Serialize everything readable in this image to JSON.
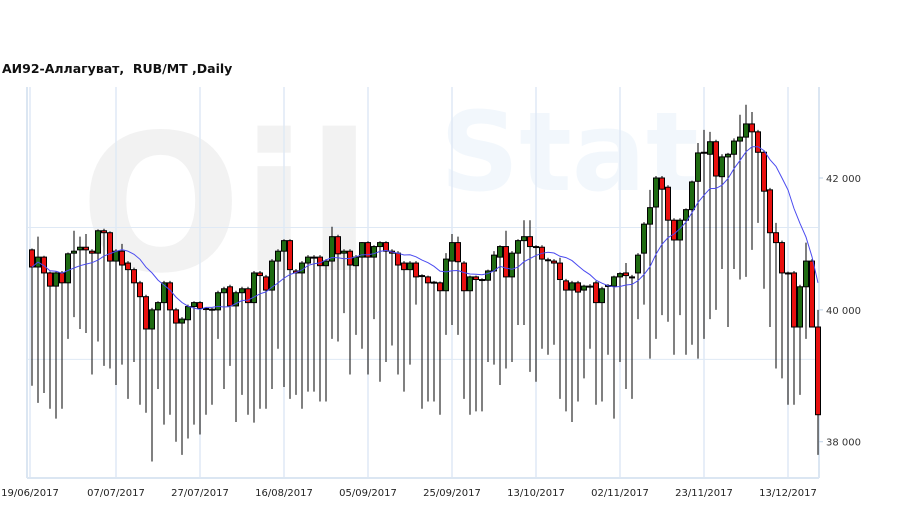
{
  "title": "АИ92-Аллагуват,  RUB/MT ,Daily",
  "watermark": "OilStat",
  "chart_data": {
    "type": "candlestick",
    "title": "АИ92-Аллагуват,  RUB/MT ,Daily",
    "ylim": [
      37450,
      43380
    ],
    "yticks": [
      38000,
      40000,
      42000
    ],
    "ytick_labels": [
      "38 000",
      "40 000",
      "42 000"
    ],
    "xtick_labels": [
      "19/06/2017",
      "07/07/2017",
      "27/07/2017",
      "16/08/2017",
      "05/09/2017",
      "25/09/2017",
      "13/10/2017",
      "02/11/2017",
      "23/11/2017",
      "13/12/2017"
    ],
    "xtick_every_n_candles": 14,
    "grid": true,
    "colors": {
      "up": "#1f6b12",
      "down": "#e8100f",
      "moving_average": "#4b4bf0",
      "grid": "#dfe9f5"
    },
    "ohlc_fields": [
      "open",
      "high",
      "low",
      "close"
    ],
    "candles": [
      [
        40910,
        40930,
        38850,
        40650
      ],
      [
        40650,
        41110,
        38590,
        40800
      ],
      [
        40800,
        40820,
        38740,
        40560
      ],
      [
        40560,
        40580,
        38500,
        40360
      ],
      [
        40360,
        40580,
        38350,
        40560
      ],
      [
        40560,
        40590,
        38500,
        40410
      ],
      [
        40410,
        40870,
        39560,
        40850
      ],
      [
        40860,
        41200,
        39890,
        40890
      ],
      [
        40910,
        41110,
        39710,
        40950
      ],
      [
        40950,
        41150,
        39650,
        40910
      ],
      [
        40890,
        40920,
        39020,
        40860
      ],
      [
        40860,
        41220,
        39520,
        41200
      ],
      [
        41200,
        41230,
        39150,
        41170
      ],
      [
        41170,
        41190,
        39110,
        40740
      ],
      [
        40740,
        40920,
        38860,
        40890
      ],
      [
        40890,
        41000,
        39170,
        40680
      ],
      [
        40710,
        40740,
        38650,
        40610
      ],
      [
        40610,
        40640,
        39210,
        40410
      ],
      [
        40410,
        40440,
        38560,
        40200
      ],
      [
        40200,
        40230,
        38440,
        39710
      ],
      [
        39710,
        40030,
        37700,
        40000
      ],
      [
        40000,
        40130,
        38800,
        40110
      ],
      [
        40110,
        40440,
        38260,
        40410
      ],
      [
        40410,
        40440,
        38410,
        40000
      ],
      [
        40000,
        40030,
        38000,
        39800
      ],
      [
        39800,
        39890,
        37800,
        39860
      ],
      [
        39850,
        40080,
        38050,
        40050
      ],
      [
        40050,
        40130,
        38260,
        40110
      ],
      [
        40110,
        40130,
        38110,
        40020
      ],
      [
        40020,
        40040,
        38410,
        40010
      ],
      [
        40010,
        40030,
        38560,
        40010
      ],
      [
        40000,
        40290,
        39560,
        40260
      ],
      [
        40260,
        40350,
        38800,
        40320
      ],
      [
        40350,
        40380,
        39150,
        40060
      ],
      [
        40060,
        40290,
        38300,
        40260
      ],
      [
        40260,
        40350,
        38710,
        40320
      ],
      [
        40320,
        40350,
        38410,
        40110
      ],
      [
        40110,
        40590,
        38290,
        40560
      ],
      [
        40560,
        40590,
        38500,
        40520
      ],
      [
        40500,
        40530,
        38500,
        40300
      ],
      [
        40300,
        40770,
        38800,
        40740
      ],
      [
        40740,
        40920,
        39410,
        40890
      ],
      [
        40890,
        41070,
        38830,
        41050
      ],
      [
        41050,
        41070,
        38650,
        40610
      ],
      [
        40590,
        40620,
        38710,
        40560
      ],
      [
        40560,
        40740,
        38500,
        40710
      ],
      [
        40710,
        40830,
        38760,
        40800
      ],
      [
        40800,
        40830,
        38760,
        40800
      ],
      [
        40800,
        40830,
        38610,
        40670
      ],
      [
        40670,
        40770,
        38610,
        40740
      ],
      [
        40740,
        41260,
        39560,
        41110
      ],
      [
        41110,
        41140,
        39520,
        40850
      ],
      [
        40860,
        40920,
        39950,
        40890
      ],
      [
        40890,
        40920,
        39020,
        40680
      ],
      [
        40670,
        40830,
        39620,
        40800
      ],
      [
        40800,
        41030,
        39410,
        41020
      ],
      [
        41020,
        41040,
        39020,
        40800
      ],
      [
        40800,
        40980,
        39860,
        40960
      ],
      [
        40960,
        41040,
        38910,
        41020
      ],
      [
        41020,
        41040,
        39210,
        40890
      ],
      [
        40890,
        40920,
        39460,
        40860
      ],
      [
        40860,
        40890,
        39020,
        40680
      ],
      [
        40710,
        40740,
        38760,
        40610
      ],
      [
        40610,
        40740,
        39170,
        40710
      ],
      [
        40710,
        40740,
        40080,
        40500
      ],
      [
        40520,
        40540,
        38500,
        40510
      ],
      [
        40500,
        40520,
        38610,
        40410
      ],
      [
        40420,
        40440,
        38610,
        40420
      ],
      [
        40410,
        40430,
        38410,
        40290
      ],
      [
        40290,
        40860,
        39620,
        40770
      ],
      [
        40740,
        41150,
        39770,
        41020
      ],
      [
        41020,
        41110,
        39620,
        40730
      ],
      [
        40710,
        40740,
        38650,
        40290
      ],
      [
        40290,
        40520,
        38410,
        40500
      ],
      [
        40500,
        40520,
        38460,
        40460
      ],
      [
        40460,
        40480,
        38460,
        40450
      ],
      [
        40450,
        40610,
        39210,
        40590
      ],
      [
        40590,
        40890,
        39170,
        40830
      ],
      [
        40800,
        40980,
        38860,
        40960
      ],
      [
        40960,
        41200,
        39110,
        40500
      ],
      [
        40500,
        40890,
        39210,
        40860
      ],
      [
        40860,
        41070,
        39770,
        41050
      ],
      [
        41050,
        41360,
        39770,
        41110
      ],
      [
        41110,
        41360,
        39060,
        40960
      ],
      [
        40960,
        40980,
        38910,
        40950
      ],
      [
        40950,
        40980,
        39410,
        40770
      ],
      [
        40760,
        40790,
        39320,
        40750
      ],
      [
        40740,
        40770,
        39470,
        40710
      ],
      [
        40710,
        40790,
        38650,
        40460
      ],
      [
        40440,
        40470,
        38460,
        40300
      ],
      [
        40300,
        40440,
        38300,
        40410
      ],
      [
        40410,
        40440,
        38610,
        40270
      ],
      [
        40300,
        40380,
        38960,
        40360
      ],
      [
        40360,
        40390,
        39410,
        40360
      ],
      [
        40410,
        40440,
        38560,
        40110
      ],
      [
        40110,
        40350,
        38610,
        40320
      ],
      [
        40360,
        40390,
        39320,
        40370
      ],
      [
        40360,
        40520,
        38350,
        40500
      ],
      [
        40500,
        40570,
        39210,
        40550
      ],
      [
        40560,
        40710,
        38800,
        40520
      ],
      [
        40500,
        40530,
        38650,
        40500
      ],
      [
        40560,
        40860,
        39860,
        40830
      ],
      [
        40860,
        41330,
        40080,
        41300
      ],
      [
        41300,
        41820,
        39260,
        41550
      ],
      [
        41560,
        42030,
        39560,
        42000
      ],
      [
        42000,
        42030,
        39920,
        41830
      ],
      [
        41860,
        41890,
        39820,
        41360
      ],
      [
        41360,
        41390,
        39320,
        41060
      ],
      [
        41060,
        41390,
        39920,
        41360
      ],
      [
        41360,
        41540,
        39320,
        41520
      ],
      [
        41520,
        41960,
        39470,
        41940
      ],
      [
        41950,
        42530,
        39260,
        42380
      ],
      [
        42380,
        42730,
        39560,
        42390
      ],
      [
        42360,
        42700,
        39860,
        42550
      ],
      [
        42550,
        42580,
        40000,
        42030
      ],
      [
        42020,
        42360,
        40620,
        42320
      ],
      [
        42320,
        42380,
        39740,
        42360
      ],
      [
        42360,
        42600,
        40620,
        42560
      ],
      [
        42560,
        42960,
        40460,
        42620
      ],
      [
        42620,
        43110,
        40500,
        42820
      ],
      [
        42820,
        43000,
        40910,
        42700
      ],
      [
        42700,
        42730,
        41320,
        42390
      ],
      [
        42390,
        42420,
        40320,
        41800
      ],
      [
        41820,
        41850,
        39740,
        41170
      ],
      [
        41170,
        41320,
        39110,
        41020
      ],
      [
        41020,
        41050,
        38960,
        40560
      ],
      [
        40560,
        40580,
        38560,
        40560
      ],
      [
        40560,
        40590,
        38560,
        39740
      ],
      [
        39740,
        40380,
        38710,
        40350
      ],
      [
        40350,
        41020,
        39560,
        40740
      ],
      [
        40740,
        40770,
        39770,
        39740
      ],
      [
        39740,
        40000,
        37800,
        38410
      ]
    ]
  }
}
